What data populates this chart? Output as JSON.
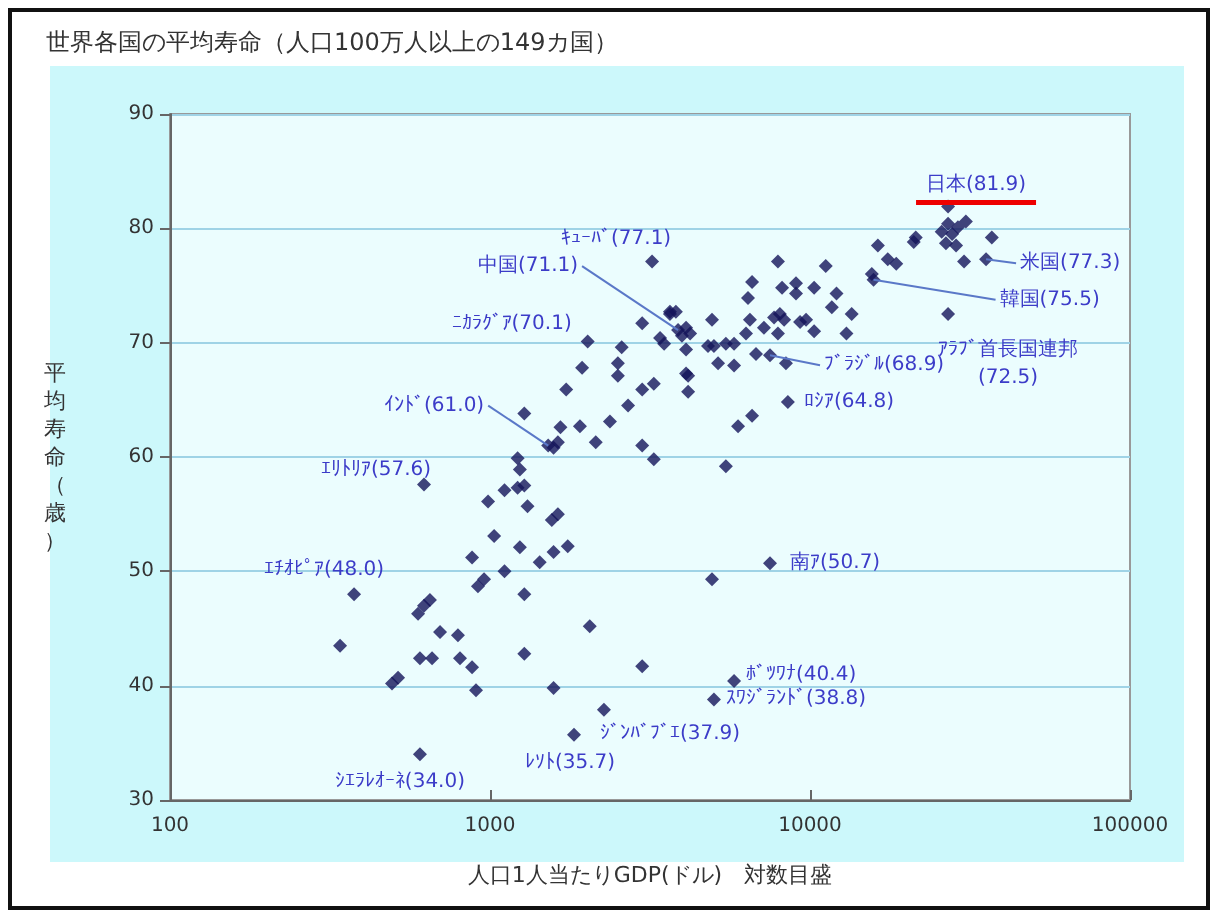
{
  "chart_data": {
    "type": "scatter",
    "title": "世界各国の平均寿命（人口100万人以上の149カ国）",
    "xlabel": "人口1人当たりGDP(ドル)　対数目盛",
    "ylabel": "平均寿命（歳）",
    "log": "x",
    "grid": "y",
    "marker": "diamond",
    "xlim": [
      100,
      100000
    ],
    "xticks": [
      100,
      1000,
      10000,
      100000
    ],
    "ylim": [
      30,
      90
    ],
    "yticks": [
      30,
      40,
      50,
      60,
      70,
      80,
      90
    ],
    "series": [
      {
        "color": "#14145a",
        "x": [
          1280,
          1660,
          1910,
          2370,
          2700,
          2140,
          1630,
          1580,
          1520,
          2990,
          3250,
          1220,
          1240,
          622,
          1220,
          1280,
          1110,
          986,
          1310,
          1630,
          1560,
          1030,
          1240,
          1750,
          1580,
          1430,
          879,
          1110,
          958,
          917,
          376,
          1280,
          649,
          622,
          596,
          2050,
          698,
          794,
          340,
          604,
          659,
          806,
          1280,
          879,
          2990,
          516,
          494,
          904,
          1580,
          2270,
          1830,
          604,
          3210,
          3650,
          3810,
          2990,
          3400,
          3500,
          2020,
          2580,
          1940,
          2510,
          2510,
          3250,
          2990,
          1730,
          3870,
          27000,
          27000,
          30700,
          25800,
          27800,
          29000,
          26600,
          28600,
          37000,
          30300,
          35500,
          21400,
          21100,
          16300,
          17500,
          18600,
          15600,
          15800,
          27000,
          7940,
          11200,
          6590,
          8180,
          9040,
          9040,
          10300,
          12100,
          6400,
          11700,
          13500,
          8050,
          7720,
          6490,
          7180,
          8300,
          9310,
          9720,
          4940,
          6310,
          7940,
          10300,
          13000,
          3650,
          4100,
          4220,
          3980,
          4800,
          5010,
          5460,
          5790,
          4100,
          5160,
          5790,
          6780,
          7500,
          8410,
          4100,
          4160,
          4160,
          8530,
          6590,
          5960,
          5460,
          7500,
          4940,
          5790,
          5010
        ],
        "values": [
          63.8,
          62.6,
          62.7,
          63.1,
          64.5,
          61.3,
          61.3,
          60.8,
          61.0,
          61.0,
          59.8,
          59.9,
          58.9,
          57.6,
          57.3,
          57.5,
          57.1,
          56.1,
          55.7,
          55.0,
          54.5,
          53.1,
          52.1,
          52.2,
          51.7,
          50.8,
          51.2,
          50.0,
          49.3,
          48.7,
          48.0,
          48.0,
          47.5,
          47.0,
          46.3,
          45.2,
          44.7,
          44.4,
          43.5,
          42.4,
          42.4,
          42.4,
          42.8,
          41.6,
          41.7,
          40.7,
          40.2,
          39.6,
          39.8,
          37.9,
          35.7,
          34.0,
          77.1,
          72.7,
          72.7,
          71.7,
          70.4,
          69.9,
          70.1,
          69.6,
          67.8,
          68.2,
          67.1,
          66.4,
          65.9,
          65.9,
          71.1,
          81.9,
          80.4,
          80.6,
          79.7,
          79.5,
          80.1,
          78.7,
          78.5,
          79.2,
          77.1,
          77.3,
          79.2,
          78.8,
          78.5,
          77.3,
          76.9,
          76.0,
          75.5,
          72.5,
          77.1,
          76.7,
          75.3,
          74.8,
          75.2,
          74.3,
          74.8,
          74.3,
          73.9,
          73.1,
          72.5,
          72.5,
          72.2,
          72.0,
          71.3,
          72.0,
          71.8,
          72.0,
          72.0,
          70.8,
          70.8,
          71.0,
          70.8,
          72.5,
          71.3,
          70.8,
          70.6,
          69.7,
          69.7,
          69.9,
          69.9,
          69.4,
          68.2,
          68.0,
          69.0,
          68.9,
          68.2,
          67.3,
          67.1,
          65.7,
          64.8,
          63.6,
          62.7,
          59.2,
          50.7,
          49.3,
          40.4,
          38.8
        ]
      }
    ],
    "annotations": [
      {
        "text": "日本(81.9)",
        "x": 27000,
        "y": 81.9
      },
      {
        "text": "米国(77.3)",
        "x": 35500,
        "y": 77.3
      },
      {
        "text": "韓国(75.5)",
        "x": 15800,
        "y": 75.5
      },
      {
        "text": "ｱﾗﾌﾞ首長国連邦(72.5)",
        "x": 27000,
        "y": 72.5
      },
      {
        "text": "ｷｭｰﾊﾞ(77.1)",
        "x": 3210,
        "y": 77.1
      },
      {
        "text": "中国(71.1)",
        "x": 3870,
        "y": 71.1
      },
      {
        "text": "ﾆｶﾗｸﾞｱ(70.1)",
        "x": 2020,
        "y": 70.1
      },
      {
        "text": "ﾌﾞﾗｼﾞﾙ(68.9)",
        "x": 7500,
        "y": 68.9
      },
      {
        "text": "ﾛｼｱ(64.8)",
        "x": 8530,
        "y": 64.8
      },
      {
        "text": "ｲﾝﾄﾞ(61.0)",
        "x": 1520,
        "y": 61.0
      },
      {
        "text": "ｴﾘﾄﾘｱ(57.6)",
        "x": 622,
        "y": 57.6
      },
      {
        "text": "ｴﾁｵﾋﾟｱ(48.0)",
        "x": 376,
        "y": 48.0
      },
      {
        "text": "南ｱ(50.7)",
        "x": 7500,
        "y": 50.7
      },
      {
        "text": "ﾎﾞﾂﾜﾅ(40.4)",
        "x": 5790,
        "y": 40.4
      },
      {
        "text": "ｽﾜｼﾞﾗﾝﾄﾞ(38.8)",
        "x": 5010,
        "y": 38.8
      },
      {
        "text": "ｼﾞﾝﾊﾞﾌﾞｴ(37.9)",
        "x": 2270,
        "y": 37.9
      },
      {
        "text": "ﾚｿﾄ(35.7)",
        "x": 1830,
        "y": 35.7
      },
      {
        "text": "ｼｴﾗﾚｵｰﾈ(34.0)",
        "x": 604,
        "y": 34.0
      }
    ]
  }
}
